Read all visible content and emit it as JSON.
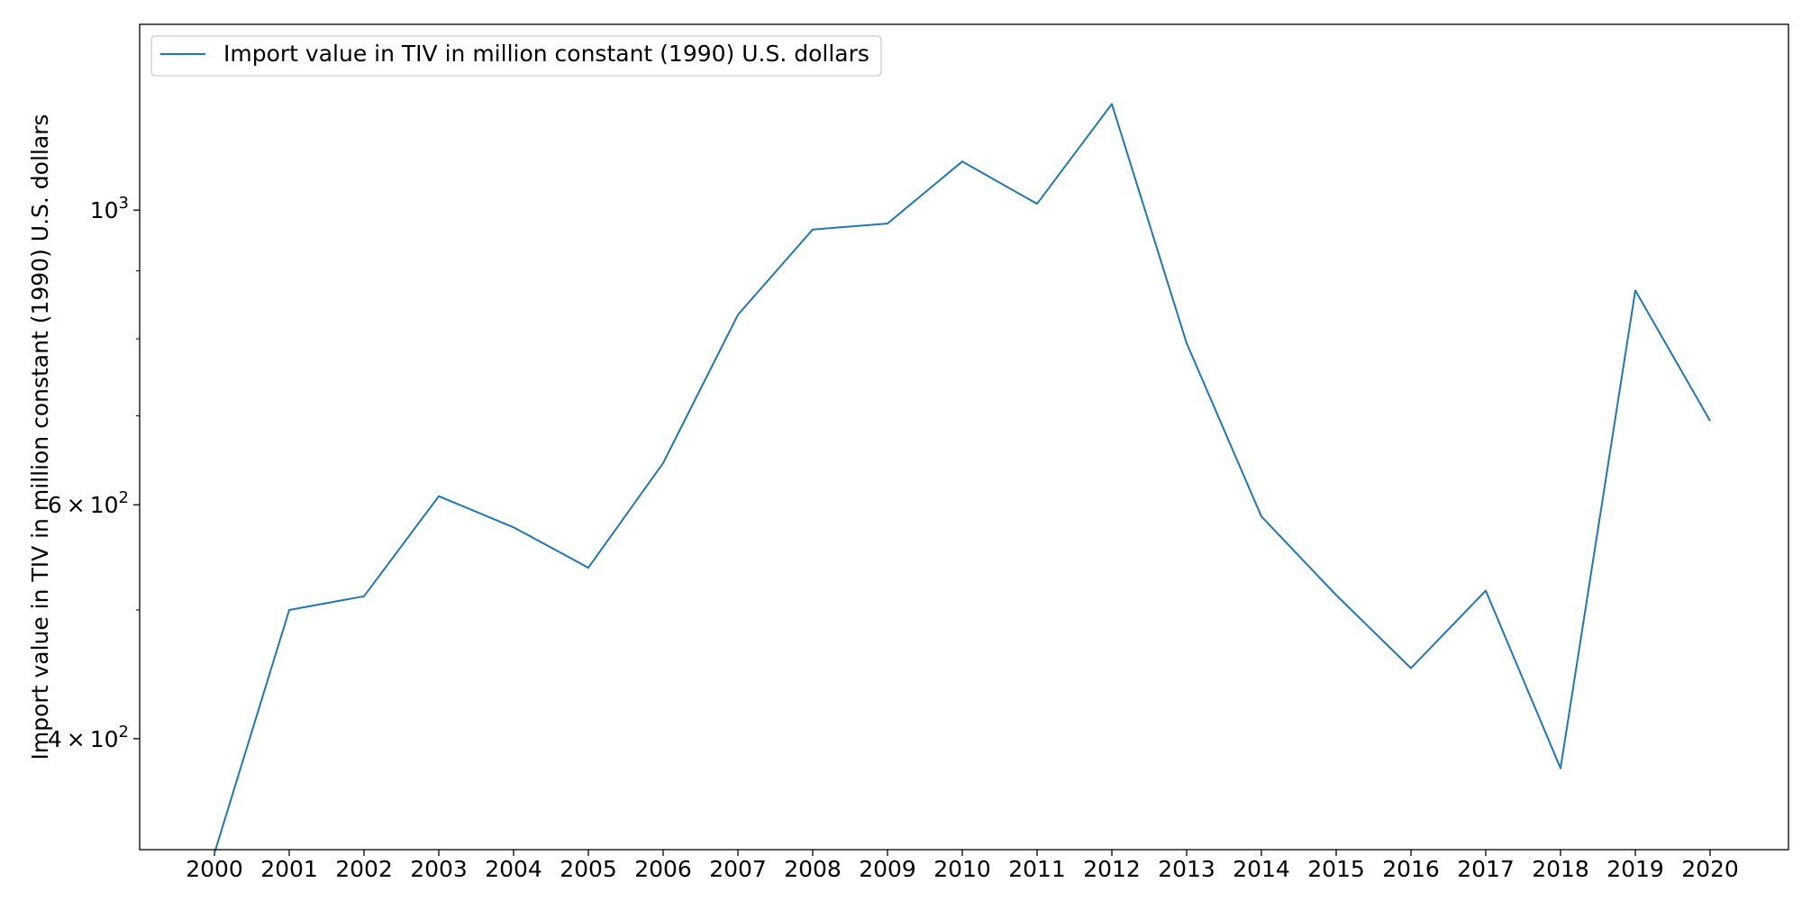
{
  "chart_data": {
    "type": "line",
    "title": "",
    "xlabel": "",
    "ylabel": "Import value in TIV in million constant (1990) U.S. dollars",
    "yscale": "log",
    "ylim": [
      330,
      1380
    ],
    "x": [
      "2000",
      "2001",
      "2002",
      "2003",
      "2004",
      "2005",
      "2006",
      "2007",
      "2008",
      "2009",
      "2010",
      "2011",
      "2012",
      "2013",
      "2014",
      "2015",
      "2016",
      "2017",
      "2018",
      "2019",
      "2020"
    ],
    "series": [
      {
        "name": "Import value in TIV in million constant (1990) U.S. dollars",
        "color": "#1f77b4",
        "values": [
          328,
          500,
          512,
          609,
          577,
          538,
          645,
          834,
          967,
          977,
          1088,
          1011,
          1202,
          794,
          588,
          513,
          452,
          517,
          380,
          870,
          694
        ]
      }
    ],
    "yticks": [
      {
        "value": 400,
        "mantissa": "4",
        "base": "10",
        "exp": "2"
      },
      {
        "value": 600,
        "mantissa": "6",
        "base": "10",
        "exp": "2"
      },
      {
        "value": 1000,
        "mantissa": "",
        "base": "10",
        "exp": "3"
      }
    ],
    "minor_yticks": [
      500,
      700,
      800,
      900
    ],
    "grid": false,
    "legend": {
      "position": "upper-left",
      "entries": [
        "Import value in TIV in million constant (1990) U.S. dollars"
      ]
    }
  }
}
